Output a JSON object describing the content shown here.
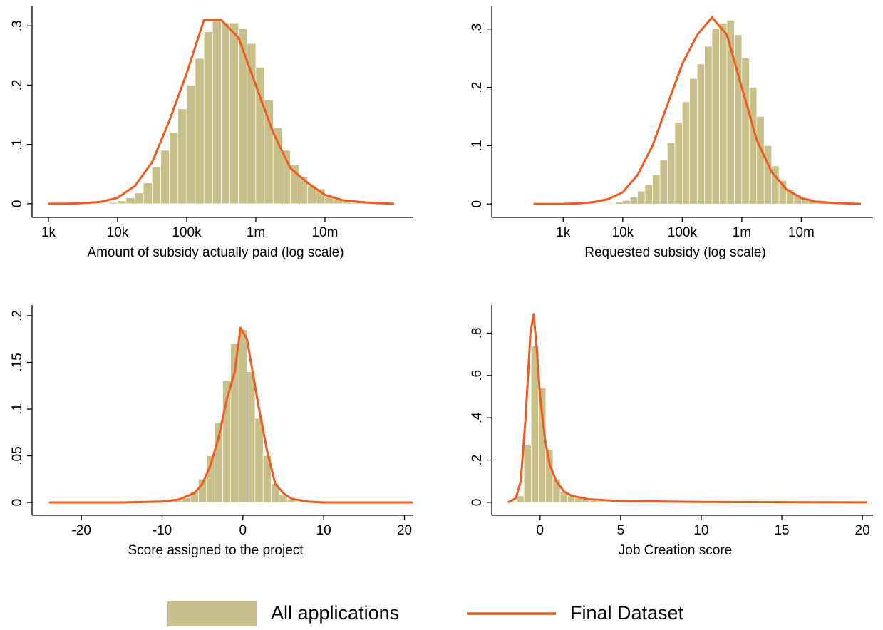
{
  "chart_data": [
    {
      "type": "histogram",
      "xlabel": "Amount of subsidy actually paid (log scale)",
      "xscale": "log",
      "xlim": [
        580,
        190000000
      ],
      "ylim": [
        -0.023,
        0.334
      ],
      "xticks": [
        {
          "value": 1000,
          "label": "1k"
        },
        {
          "value": 10000,
          "label": "10k"
        },
        {
          "value": 100000,
          "label": "100k"
        },
        {
          "value": 1000000,
          "label": "1m"
        },
        {
          "value": 10000000,
          "label": "10m"
        }
      ],
      "yticks": [
        0,
        {
          "value": 0.1,
          "label": ".1"
        },
        {
          "value": 0.2,
          "label": ".2"
        },
        {
          "value": 0.3,
          "label": ".3"
        }
      ],
      "bins": [
        5620,
        7500,
        10000,
        13300,
        17800,
        23700,
        31600,
        42200,
        56200,
        75000,
        100000,
        133000,
        178000,
        237000,
        316000,
        422000,
        562000,
        750000,
        1000000,
        1330000,
        1780000,
        2370000,
        3160000,
        4220000,
        5620000,
        7500000,
        10000000,
        13300000,
        17800000,
        23700000,
        31600000,
        42200000,
        56200000
      ],
      "values": [
        0.001,
        0.002,
        0.005,
        0.01,
        0.018,
        0.035,
        0.062,
        0.09,
        0.12,
        0.16,
        0.2,
        0.245,
        0.29,
        0.313,
        0.305,
        0.305,
        0.295,
        0.27,
        0.23,
        0.175,
        0.128,
        0.09,
        0.065,
        0.045,
        0.03,
        0.025,
        0.012,
        0.007,
        0.004,
        0.002,
        0.001,
        0.001
      ],
      "density": {
        "x": [
          1000,
          1780,
          3160,
          5620,
          10000,
          17800,
          31600,
          56200,
          100000,
          178000,
          316000,
          562000,
          1000000,
          1780000,
          3160000,
          5620000,
          10000000,
          17800000,
          31600000,
          56200000,
          100000000
        ],
        "values": [
          0,
          0,
          0.001,
          0.003,
          0.01,
          0.03,
          0.07,
          0.14,
          0.22,
          0.31,
          0.31,
          0.28,
          0.2,
          0.12,
          0.06,
          0.035,
          0.015,
          0.006,
          0.003,
          0.001,
          0
        ]
      }
    },
    {
      "type": "histogram",
      "xlabel": "Requested subsidy (log scale)",
      "xscale": "log",
      "xlim": [
        63,
        160000000
      ],
      "ylim": [
        -0.023,
        0.34
      ],
      "xticks": [
        {
          "value": 1000,
          "label": "1k"
        },
        {
          "value": 10000,
          "label": "10k"
        },
        {
          "value": 100000,
          "label": "100k"
        },
        {
          "value": 1000000,
          "label": "1m"
        },
        {
          "value": 10000000,
          "label": "10m"
        }
      ],
      "yticks": [
        0,
        {
          "value": 0.1,
          "label": ".1"
        },
        {
          "value": 0.2,
          "label": ".2"
        },
        {
          "value": 0.3,
          "label": ".3"
        }
      ],
      "bins": [
        5620,
        7500,
        10000,
        13300,
        17800,
        23700,
        31600,
        42200,
        56200,
        75000,
        100000,
        133000,
        178000,
        237000,
        316000,
        422000,
        562000,
        750000,
        1000000,
        1330000,
        1780000,
        2370000,
        3160000,
        4220000,
        5620000,
        7500000,
        10000000,
        13300000,
        17800000,
        23700000,
        31600000,
        42200000,
        56200000
      ],
      "values": [
        0.001,
        0.003,
        0.006,
        0.012,
        0.022,
        0.033,
        0.05,
        0.075,
        0.105,
        0.14,
        0.175,
        0.215,
        0.24,
        0.27,
        0.3,
        0.31,
        0.315,
        0.29,
        0.25,
        0.2,
        0.15,
        0.1,
        0.065,
        0.04,
        0.025,
        0.016,
        0.01,
        0.006,
        0.003,
        0.002,
        0.001,
        0.001
      ],
      "density": {
        "x": [
          316,
          562,
          1000,
          1780,
          3160,
          5620,
          10000,
          17800,
          31600,
          56200,
          100000,
          178000,
          316000,
          562000,
          1000000,
          1780000,
          3160000,
          5620000,
          10000000,
          17800000,
          31600000,
          56200000,
          100000000
        ],
        "values": [
          0,
          0,
          0,
          0.001,
          0.003,
          0.008,
          0.02,
          0.05,
          0.1,
          0.17,
          0.24,
          0.29,
          0.32,
          0.29,
          0.2,
          0.11,
          0.055,
          0.025,
          0.01,
          0.004,
          0.002,
          0.001,
          0
        ]
      }
    },
    {
      "type": "histogram",
      "xlabel": "Score assigned to the project",
      "xscale": "linear",
      "xlim": [
        -26.1,
        21.1
      ],
      "ylim": [
        -0.0137,
        0.2114
      ],
      "xticks": [
        -20,
        -10,
        0,
        10,
        20
      ],
      "yticks": [
        0,
        {
          "value": 0.05,
          "label": ".05"
        },
        {
          "value": 0.1,
          "label": ".1"
        },
        {
          "value": 0.15,
          "label": ".15"
        },
        {
          "value": 0.2,
          "label": ".2"
        }
      ],
      "bins": [
        -8.5,
        -7.5,
        -6.5,
        -5.5,
        -4.5,
        -3.5,
        -2.5,
        -1.5,
        -0.5,
        0.5,
        1.5,
        2.5,
        3.5,
        4.5,
        5.5,
        6.5,
        7.5
      ],
      "values": [
        0.002,
        0.005,
        0.012,
        0.025,
        0.05,
        0.085,
        0.13,
        0.17,
        0.185,
        0.14,
        0.09,
        0.05,
        0.02,
        0.008,
        0.003,
        0.001
      ],
      "density": {
        "x": [
          -24,
          -15,
          -10,
          -8,
          -6,
          -5,
          -4,
          -3,
          -2,
          -1,
          -0.3,
          0.5,
          1,
          2,
          3,
          4,
          5,
          6,
          8,
          10,
          15,
          21
        ],
        "values": [
          0,
          0,
          0.001,
          0.003,
          0.01,
          0.02,
          0.04,
          0.07,
          0.11,
          0.14,
          0.187,
          0.175,
          0.15,
          0.1,
          0.055,
          0.02,
          0.01,
          0.004,
          0.001,
          0,
          0,
          0
        ]
      }
    },
    {
      "type": "histogram",
      "xlabel": "Job Creation score",
      "xscale": "linear",
      "xlim": [
        -3.0,
        20.66
      ],
      "ylim": [
        -0.061,
        0.933
      ],
      "xticks": [
        0,
        5,
        10,
        15,
        20
      ],
      "yticks": [
        0,
        {
          "value": 0.2,
          "label": ".2"
        },
        {
          "value": 0.4,
          "label": ".4"
        },
        {
          "value": 0.6,
          "label": ".6"
        },
        {
          "value": 0.8,
          "label": ".8"
        }
      ],
      "bins": [
        -1.9,
        -1.45,
        -1.0,
        -0.55,
        -0.1,
        0.35,
        0.8,
        1.25,
        1.7,
        2.15,
        2.6,
        3.05,
        3.5,
        3.95
      ],
      "values": [
        0.005,
        0.03,
        0.27,
        0.74,
        0.54,
        0.25,
        0.11,
        0.05,
        0.03,
        0.02,
        0.012,
        0.008,
        0.005
      ],
      "density": {
        "x": [
          -2,
          -1.5,
          -1.2,
          -0.9,
          -0.6,
          -0.4,
          -0.2,
          0,
          0.3,
          0.6,
          1,
          1.5,
          2,
          3,
          5,
          10,
          15,
          20.3
        ],
        "values": [
          0,
          0.02,
          0.1,
          0.4,
          0.8,
          0.89,
          0.72,
          0.5,
          0.3,
          0.18,
          0.1,
          0.05,
          0.03,
          0.015,
          0.006,
          0.002,
          0.001,
          0
        ]
      }
    }
  ],
  "legend": {
    "position": "bottom",
    "series": [
      {
        "name": "All applications",
        "color": "#c8c08a"
      },
      {
        "name": "Final Dataset",
        "color": "#f05a1e"
      }
    ]
  }
}
